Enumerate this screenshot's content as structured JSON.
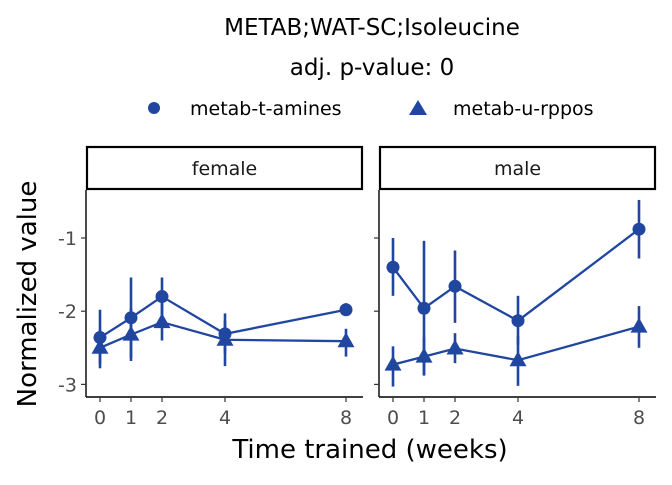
{
  "chart_data": {
    "type": "line",
    "title_line1": "METAB;WAT-SC;Isoleucine",
    "title_line2": "adj. p-value: 0",
    "xlabel": "Time trained (weeks)",
    "ylabel": "Normalized value",
    "x_ticks": [
      0,
      1,
      2,
      4,
      8
    ],
    "y_ticks": [
      -1,
      -2,
      -3
    ],
    "legend": [
      {
        "name": "metab-t-amines",
        "marker": "circle"
      },
      {
        "name": "metab-u-rppos",
        "marker": "triangle"
      }
    ],
    "legend_position": "top",
    "color": "#2046a0",
    "panels": [
      {
        "label": "female",
        "series": [
          {
            "name": "metab-t-amines",
            "marker": "circle",
            "points": [
              {
                "x": 0,
                "y": -2.36,
                "lo": -2.72,
                "hi": -1.98
              },
              {
                "x": 1,
                "y": -2.09,
                "lo": -2.64,
                "hi": -1.54
              },
              {
                "x": 2,
                "y": -1.8,
                "lo": -2.05,
                "hi": -1.54
              },
              {
                "x": 4,
                "y": -2.31,
                "lo": -2.58,
                "hi": -2.13
              },
              {
                "x": 8,
                "y": -1.98,
                "lo": -2.06,
                "hi": -1.89
              }
            ]
          },
          {
            "name": "metab-u-rppos",
            "marker": "triangle",
            "points": [
              {
                "x": 0,
                "y": -2.5,
                "lo": -2.78,
                "hi": -2.25
              },
              {
                "x": 1,
                "y": -2.32,
                "lo": -2.68,
                "hi": -1.96
              },
              {
                "x": 2,
                "y": -2.15,
                "lo": -2.4,
                "hi": -1.89
              },
              {
                "x": 4,
                "y": -2.39,
                "lo": -2.75,
                "hi": -2.03
              },
              {
                "x": 8,
                "y": -2.41,
                "lo": -2.62,
                "hi": -2.24
              }
            ]
          }
        ]
      },
      {
        "label": "male",
        "series": [
          {
            "name": "metab-t-amines",
            "marker": "circle",
            "points": [
              {
                "x": 0,
                "y": -1.4,
                "lo": -1.79,
                "hi": -1.0
              },
              {
                "x": 1,
                "y": -1.96,
                "lo": -2.88,
                "hi": -1.04
              },
              {
                "x": 2,
                "y": -1.66,
                "lo": -2.16,
                "hi": -1.17
              },
              {
                "x": 4,
                "y": -2.13,
                "lo": -2.46,
                "hi": -1.79
              },
              {
                "x": 8,
                "y": -0.88,
                "lo": -1.28,
                "hi": -0.48
              }
            ]
          },
          {
            "name": "metab-u-rppos",
            "marker": "triangle",
            "points": [
              {
                "x": 0,
                "y": -2.73,
                "lo": -3.03,
                "hi": -2.48
              },
              {
                "x": 1,
                "y": -2.62,
                "lo": -2.87,
                "hi": -2.35
              },
              {
                "x": 2,
                "y": -2.51,
                "lo": -2.71,
                "hi": -2.3
              },
              {
                "x": 4,
                "y": -2.67,
                "lo": -3.02,
                "hi": -2.34
              },
              {
                "x": 8,
                "y": -2.21,
                "lo": -2.5,
                "hi": -1.93
              }
            ]
          }
        ]
      }
    ]
  }
}
